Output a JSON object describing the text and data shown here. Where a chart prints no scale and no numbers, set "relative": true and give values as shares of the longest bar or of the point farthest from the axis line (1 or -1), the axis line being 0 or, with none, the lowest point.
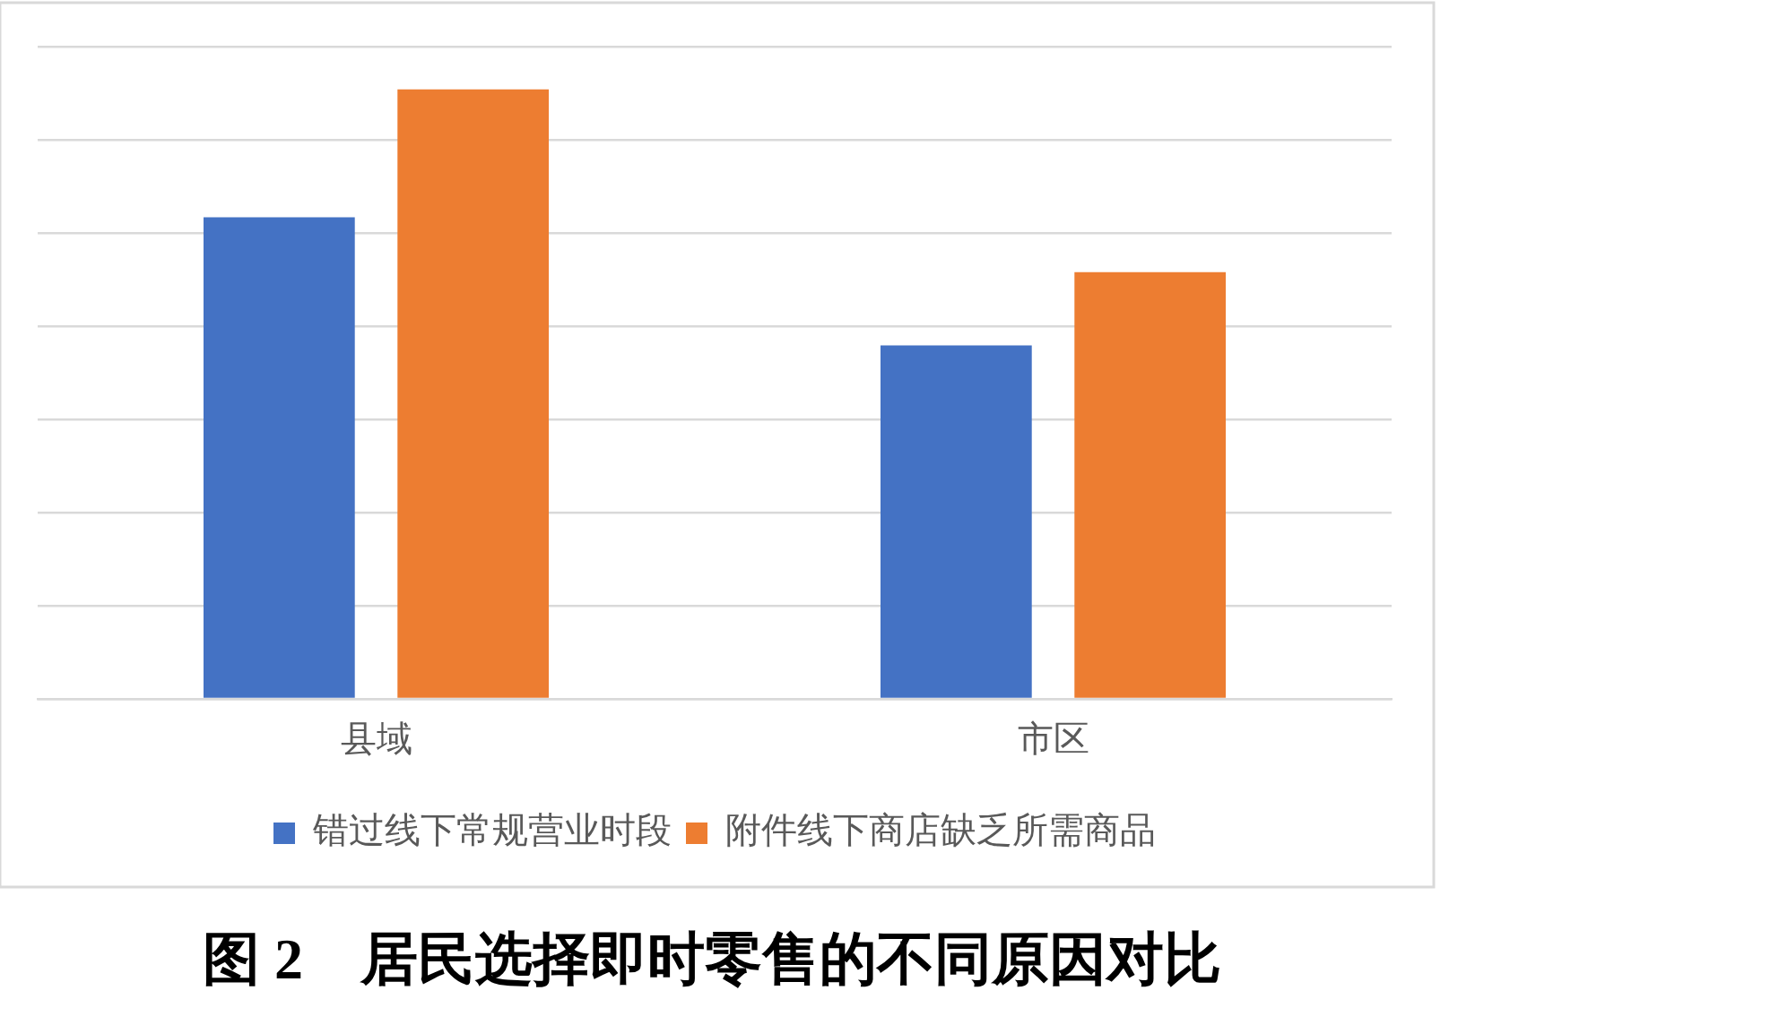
{
  "chart_data": {
    "type": "bar",
    "title": "图 2　居民选择即时零售的不同原因对比",
    "categories": [
      "县域",
      "市区"
    ],
    "series": [
      {
        "name": "错过线下常规营业时段",
        "color": "#4472c4",
        "values": [
          0.79,
          0.58
        ]
      },
      {
        "name": "附件线下商店缺乏所需商品",
        "color": "#ed7d31",
        "values": [
          1,
          0.7
        ]
      }
    ],
    "relative": true,
    "grid": "y",
    "legend": "bottom"
  }
}
